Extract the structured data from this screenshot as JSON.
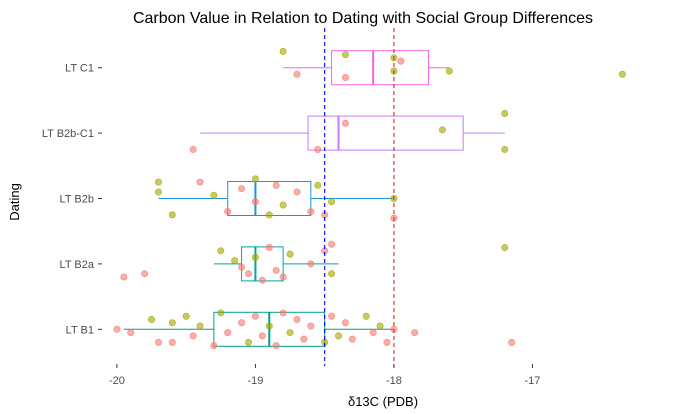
{
  "chart_data": {
    "type": "boxplot",
    "title": "Carbon Value in Relation to Dating with Social Group Differences",
    "xlabel": "δ13C (PDB)",
    "ylabel": "Dating",
    "xlim": [
      -20.05,
      -16.05
    ],
    "x_ticks": [
      -20,
      -19,
      -18,
      -17
    ],
    "x_tick_labels": [
      "-20",
      "-19",
      "-18",
      "-17"
    ],
    "categories": [
      "LT B1",
      "LT B2a",
      "LT B2b",
      "LT B2b-C1",
      "LT C1"
    ],
    "grid": false,
    "legend": "none",
    "reference_lines": [
      {
        "x": -18.5,
        "style": "dashed",
        "color": "#0000ee"
      },
      {
        "x": -18.0,
        "style": "dashed",
        "color": "#d62728"
      }
    ],
    "boxes": [
      {
        "category": "LT B1",
        "whisker_low": -19.95,
        "q1": -19.3,
        "median": -18.9,
        "q3": -18.5,
        "whisker_high": -18.0,
        "color": "#00a087"
      },
      {
        "category": "LT B2a",
        "whisker_low": -19.3,
        "q1": -19.1,
        "median": -19.0,
        "q3": -18.8,
        "whisker_high": -18.4,
        "color": "#00a6a6"
      },
      {
        "category": "LT B2b",
        "whisker_low": -19.7,
        "q1": -19.2,
        "median": -19.0,
        "q3": -18.6,
        "whisker_high": -18.0,
        "color": "#1f93d6"
      },
      {
        "category": "LT B2b-C1",
        "whisker_low": -19.4,
        "q1": -18.62,
        "median": -18.4,
        "q3": -17.5,
        "whisker_high": -17.2,
        "color": "#c77cff"
      },
      {
        "category": "LT C1",
        "whisker_low": -18.8,
        "q1": -18.45,
        "median": -18.15,
        "q3": -17.75,
        "whisker_high": -17.6,
        "color": "#f564e3"
      }
    ],
    "points": {
      "LT C1": [
        {
          "x": -18.8,
          "j": -0.25,
          "g": "B"
        },
        {
          "x": -18.7,
          "j": 0.1,
          "g": "A"
        },
        {
          "x": -18.35,
          "j": -0.2,
          "g": "B"
        },
        {
          "x": -18.35,
          "j": 0.15,
          "g": "A"
        },
        {
          "x": -18.0,
          "j": -0.15,
          "g": "B"
        },
        {
          "x": -18.0,
          "j": 0.05,
          "g": "B"
        },
        {
          "x": -17.95,
          "j": -0.1,
          "g": "A"
        },
        {
          "x": -17.6,
          "j": 0.05,
          "g": "B"
        },
        {
          "x": -16.35,
          "j": 0.1,
          "g": "B"
        }
      ],
      "LT B2b-C1": [
        {
          "x": -19.45,
          "j": 0.25,
          "g": "A"
        },
        {
          "x": -18.55,
          "j": 0.25,
          "g": "A"
        },
        {
          "x": -18.35,
          "j": -0.15,
          "g": "A"
        },
        {
          "x": -17.65,
          "j": -0.05,
          "g": "B"
        },
        {
          "x": -17.2,
          "j": -0.3,
          "g": "B"
        },
        {
          "x": -17.2,
          "j": 0.25,
          "g": "B"
        }
      ],
      "LT B2b": [
        {
          "x": -19.7,
          "j": -0.25,
          "g": "B"
        },
        {
          "x": -19.7,
          "j": -0.1,
          "g": "B"
        },
        {
          "x": -19.6,
          "j": 0.25,
          "g": "B"
        },
        {
          "x": -19.4,
          "j": -0.25,
          "g": "A"
        },
        {
          "x": -19.3,
          "j": -0.05,
          "g": "B"
        },
        {
          "x": -19.2,
          "j": 0.2,
          "g": "A"
        },
        {
          "x": -19.1,
          "j": -0.15,
          "g": "A"
        },
        {
          "x": -19.0,
          "j": 0.05,
          "g": "A"
        },
        {
          "x": -19.0,
          "j": -0.3,
          "g": "B"
        },
        {
          "x": -18.9,
          "j": 0.25,
          "g": "B"
        },
        {
          "x": -18.85,
          "j": -0.2,
          "g": "A"
        },
        {
          "x": -18.8,
          "j": 0.1,
          "g": "B"
        },
        {
          "x": -18.7,
          "j": -0.1,
          "g": "A"
        },
        {
          "x": -18.6,
          "j": 0.2,
          "g": "A"
        },
        {
          "x": -18.55,
          "j": -0.2,
          "g": "B"
        },
        {
          "x": -18.5,
          "j": 0.25,
          "g": "A"
        },
        {
          "x": -18.45,
          "j": 0.05,
          "g": "B"
        },
        {
          "x": -18.0,
          "j": 0.0,
          "g": "B"
        },
        {
          "x": -18.0,
          "j": 0.3,
          "g": "A"
        }
      ],
      "LT B2a": [
        {
          "x": -19.95,
          "j": 0.2,
          "g": "A"
        },
        {
          "x": -19.8,
          "j": 0.15,
          "g": "A"
        },
        {
          "x": -19.25,
          "j": -0.2,
          "g": "B"
        },
        {
          "x": -19.15,
          "j": -0.05,
          "g": "B"
        },
        {
          "x": -19.1,
          "j": 0.05,
          "g": "A"
        },
        {
          "x": -19.05,
          "j": 0.15,
          "g": "A"
        },
        {
          "x": -19.0,
          "j": -0.1,
          "g": "B"
        },
        {
          "x": -18.95,
          "j": 0.25,
          "g": "A"
        },
        {
          "x": -18.9,
          "j": -0.25,
          "g": "A"
        },
        {
          "x": -18.85,
          "j": 0.1,
          "g": "A"
        },
        {
          "x": -18.8,
          "j": 0.2,
          "g": "A"
        },
        {
          "x": -18.75,
          "j": -0.15,
          "g": "B"
        },
        {
          "x": -18.6,
          "j": 0.0,
          "g": "A"
        },
        {
          "x": -18.5,
          "j": -0.2,
          "g": "A"
        },
        {
          "x": -18.45,
          "j": -0.3,
          "g": "A"
        },
        {
          "x": -18.45,
          "j": 0.15,
          "g": "B"
        },
        {
          "x": -17.2,
          "j": -0.25,
          "g": "B"
        }
      ],
      "LT B1": [
        {
          "x": -20.0,
          "j": 0.0,
          "g": "A"
        },
        {
          "x": -19.9,
          "j": 0.05,
          "g": "A"
        },
        {
          "x": -19.75,
          "j": -0.15,
          "g": "B"
        },
        {
          "x": -19.7,
          "j": 0.2,
          "g": "A"
        },
        {
          "x": -19.6,
          "j": -0.1,
          "g": "B"
        },
        {
          "x": -19.6,
          "j": 0.2,
          "g": "A"
        },
        {
          "x": -19.5,
          "j": -0.2,
          "g": "B"
        },
        {
          "x": -19.45,
          "j": 0.1,
          "g": "A"
        },
        {
          "x": -19.4,
          "j": -0.05,
          "g": "B"
        },
        {
          "x": -19.3,
          "j": 0.25,
          "g": "A"
        },
        {
          "x": -19.25,
          "j": -0.25,
          "g": "B"
        },
        {
          "x": -19.2,
          "j": 0.05,
          "g": "A"
        },
        {
          "x": -19.1,
          "j": -0.1,
          "g": "A"
        },
        {
          "x": -19.05,
          "j": 0.2,
          "g": "B"
        },
        {
          "x": -19.0,
          "j": -0.2,
          "g": "A"
        },
        {
          "x": -18.95,
          "j": 0.1,
          "g": "A"
        },
        {
          "x": -18.9,
          "j": -0.05,
          "g": "B"
        },
        {
          "x": -18.85,
          "j": 0.25,
          "g": "A"
        },
        {
          "x": -18.8,
          "j": -0.25,
          "g": "A"
        },
        {
          "x": -18.75,
          "j": 0.05,
          "g": "B"
        },
        {
          "x": -18.7,
          "j": -0.15,
          "g": "A"
        },
        {
          "x": -18.65,
          "j": 0.15,
          "g": "A"
        },
        {
          "x": -18.6,
          "j": -0.05,
          "g": "A"
        },
        {
          "x": -18.5,
          "j": 0.2,
          "g": "B"
        },
        {
          "x": -18.45,
          "j": -0.2,
          "g": "A"
        },
        {
          "x": -18.4,
          "j": 0.1,
          "g": "B"
        },
        {
          "x": -18.35,
          "j": -0.1,
          "g": "A"
        },
        {
          "x": -18.3,
          "j": 0.15,
          "g": "A"
        },
        {
          "x": -18.2,
          "j": -0.2,
          "g": "B"
        },
        {
          "x": -18.15,
          "j": 0.05,
          "g": "A"
        },
        {
          "x": -18.1,
          "j": -0.05,
          "g": "B"
        },
        {
          "x": -18.05,
          "j": 0.2,
          "g": "A"
        },
        {
          "x": -18.0,
          "j": 0.0,
          "g": "A"
        },
        {
          "x": -17.85,
          "j": 0.05,
          "g": "A"
        },
        {
          "x": -17.15,
          "j": 0.2,
          "g": "A"
        }
      ]
    },
    "point_colors": {
      "A": "#f8766d",
      "B": "#a3a500"
    }
  }
}
